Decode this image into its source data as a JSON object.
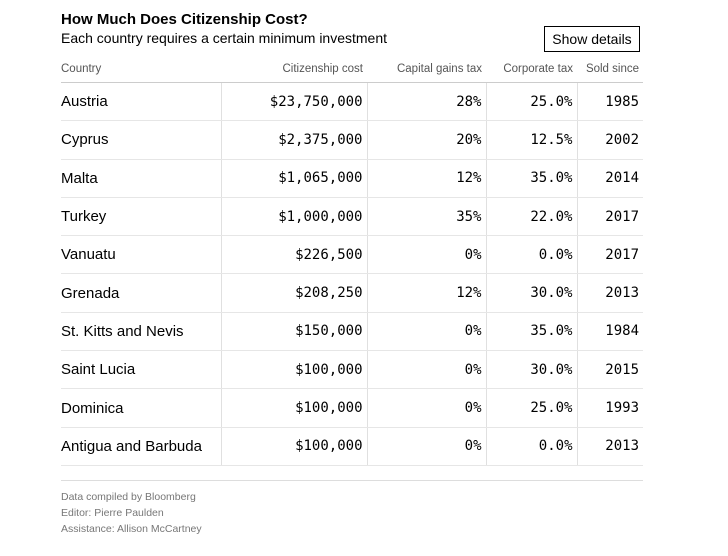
{
  "header": {
    "title": "How Much Does Citizenship Cost?",
    "subtitle": "Each country requires a certain minimum investment",
    "button_label": "Show details"
  },
  "chart_data": {
    "type": "table",
    "columns": [
      "Country",
      "Citizenship cost",
      "Capital gains tax",
      "Corporate tax",
      "Sold since"
    ],
    "rows": [
      [
        "Austria",
        "$23,750,000",
        "28%",
        "25.0%",
        "1985"
      ],
      [
        "Cyprus",
        "$2,375,000",
        "20%",
        "12.5%",
        "2002"
      ],
      [
        "Malta",
        "$1,065,000",
        "12%",
        "35.0%",
        "2014"
      ],
      [
        "Turkey",
        "$1,000,000",
        "35%",
        "22.0%",
        "2017"
      ],
      [
        "Vanuatu",
        "$226,500",
        "0%",
        "0.0%",
        "2017"
      ],
      [
        "Grenada",
        "$208,250",
        "12%",
        "30.0%",
        "2013"
      ],
      [
        "St. Kitts and Nevis",
        "$150,000",
        "0%",
        "35.0%",
        "1984"
      ],
      [
        "Saint Lucia",
        "$100,000",
        "0%",
        "30.0%",
        "2015"
      ],
      [
        "Dominica",
        "$100,000",
        "0%",
        "25.0%",
        "1993"
      ],
      [
        "Antigua and Barbuda",
        "$100,000",
        "0%",
        "0.0%",
        "2013"
      ]
    ]
  },
  "footer": {
    "source": "Data compiled by Bloomberg",
    "editor": "Editor: Pierre Paulden",
    "assistance": "Assistance: Allison McCartney"
  }
}
